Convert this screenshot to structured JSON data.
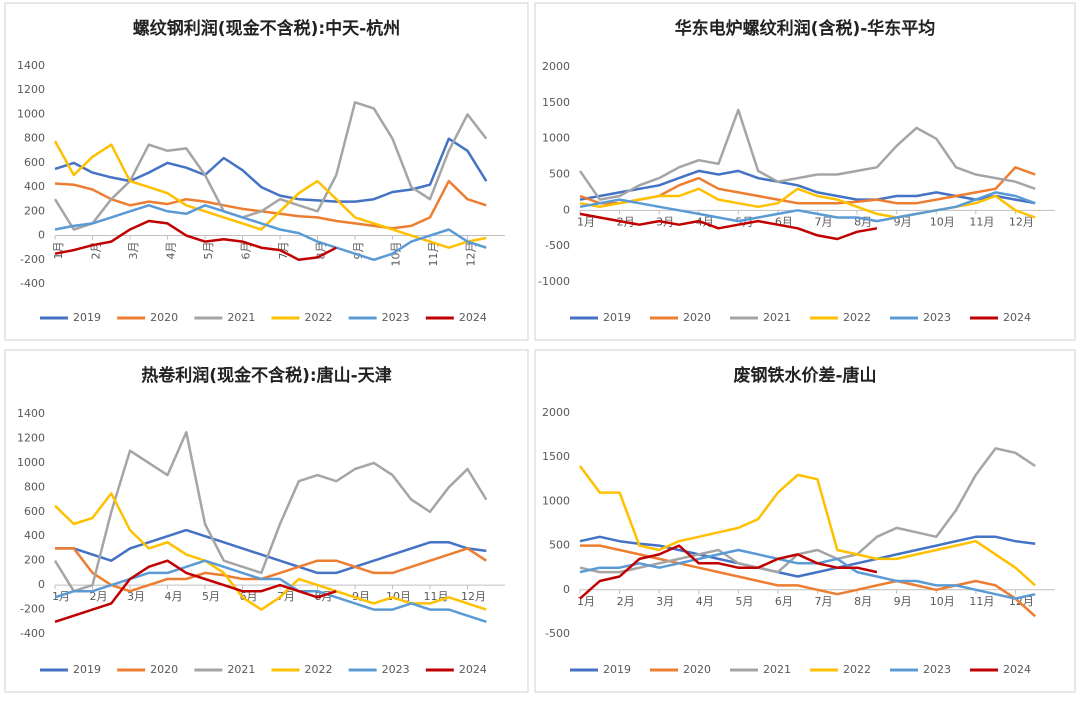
{
  "chart_data": [
    {
      "type": "line",
      "title": "螺纹钢利润(现金不含税):中天-杭州",
      "x": [
        1,
        1.5,
        2,
        2.5,
        3,
        3.5,
        4,
        4.5,
        5,
        5.5,
        6,
        6.5,
        7,
        7.5,
        8,
        8.5,
        9,
        9.5,
        10,
        10.5,
        11,
        11.5,
        12,
        12.5
      ],
      "xlim": [
        1,
        13
      ],
      "xticks": [
        {
          "value": 1,
          "label": "1月"
        },
        {
          "value": 2,
          "label": "2月"
        },
        {
          "value": 3,
          "label": "3月"
        },
        {
          "value": 4,
          "label": "4月"
        },
        {
          "value": 5,
          "label": "5月"
        },
        {
          "value": 6,
          "label": "6月"
        },
        {
          "value": 7,
          "label": "7月"
        },
        {
          "value": 8,
          "label": "8月"
        },
        {
          "value": 9,
          "label": "9月"
        },
        {
          "value": 10,
          "label": "10月"
        },
        {
          "value": 11,
          "label": "11月"
        },
        {
          "value": 12,
          "label": "12月"
        }
      ],
      "ylim": [
        -400,
        1400
      ],
      "yticks": [
        -400,
        -200,
        0,
        200,
        400,
        600,
        800,
        1000,
        1200,
        1400
      ],
      "series": [
        {
          "name": "2019",
          "color": "#4472c4",
          "values": [
            550,
            600,
            520,
            480,
            450,
            520,
            600,
            560,
            500,
            640,
            540,
            400,
            330,
            300,
            290,
            280,
            280,
            300,
            360,
            380,
            420,
            800,
            700,
            450
          ]
        },
        {
          "name": "2020",
          "color": "#ed7d31",
          "values": [
            430,
            420,
            380,
            300,
            250,
            280,
            260,
            300,
            280,
            250,
            220,
            200,
            180,
            160,
            150,
            120,
            100,
            80,
            60,
            80,
            150,
            450,
            300,
            250
          ]
        },
        {
          "name": "2021",
          "color": "#a5a5a5",
          "values": [
            300,
            50,
            100,
            300,
            450,
            750,
            700,
            720,
            500,
            200,
            150,
            200,
            300,
            250,
            200,
            500,
            1100,
            1050,
            800,
            400,
            300,
            700,
            1000,
            800
          ]
        },
        {
          "name": "2022",
          "color": "#ffc000",
          "values": [
            780,
            500,
            650,
            750,
            450,
            400,
            350,
            250,
            200,
            150,
            100,
            50,
            200,
            350,
            450,
            300,
            150,
            100,
            50,
            0,
            -50,
            -100,
            -50,
            -20
          ]
        },
        {
          "name": "2023",
          "color": "#5b9bd5",
          "values": [
            50,
            80,
            100,
            150,
            200,
            250,
            200,
            180,
            250,
            200,
            150,
            100,
            50,
            20,
            -50,
            -100,
            -150,
            -200,
            -150,
            -50,
            0,
            50,
            -50,
            -100
          ]
        },
        {
          "name": "2024",
          "color": "#c00000",
          "values": [
            -150,
            -120,
            -80,
            -50,
            50,
            120,
            100,
            0,
            -50,
            -30,
            -50,
            -100,
            -120,
            -200,
            -180,
            -100,
            null,
            null,
            null,
            null,
            null,
            null,
            null,
            null
          ]
        }
      ]
    },
    {
      "type": "line",
      "title": "华东电炉螺纹利润(含税)-华东平均",
      "x": [
        1,
        1.5,
        2,
        2.5,
        3,
        3.5,
        4,
        4.5,
        5,
        5.5,
        6,
        6.5,
        7,
        7.5,
        8,
        8.5,
        9,
        9.5,
        10,
        10.5,
        11,
        11.5,
        12,
        12.5
      ],
      "xlim": [
        1,
        13
      ],
      "xticks": [
        {
          "value": 1,
          "label": "1月"
        },
        {
          "value": 2,
          "label": "2月"
        },
        {
          "value": 3,
          "label": "3月"
        },
        {
          "value": 4,
          "label": "4月"
        },
        {
          "value": 5,
          "label": "5月"
        },
        {
          "value": 6,
          "label": "6月"
        },
        {
          "value": 7,
          "label": "7月"
        },
        {
          "value": 8,
          "label": "8月"
        },
        {
          "value": 9,
          "label": "9月"
        },
        {
          "value": 10,
          "label": "10月"
        },
        {
          "value": 11,
          "label": "11月"
        },
        {
          "value": 12,
          "label": "12月"
        }
      ],
      "ylim": [
        -1000,
        2000
      ],
      "yticks": [
        -1000,
        -500,
        0,
        500,
        1000,
        1500,
        2000
      ],
      "series": [
        {
          "name": "2019",
          "color": "#4472c4",
          "values": [
            150,
            200,
            250,
            300,
            350,
            450,
            550,
            500,
            550,
            450,
            400,
            350,
            250,
            200,
            150,
            150,
            200,
            200,
            250,
            200,
            150,
            200,
            150,
            100
          ]
        },
        {
          "name": "2020",
          "color": "#ed7d31",
          "values": [
            200,
            100,
            100,
            150,
            200,
            350,
            450,
            300,
            250,
            200,
            150,
            100,
            100,
            100,
            120,
            150,
            100,
            100,
            150,
            200,
            250,
            300,
            600,
            500
          ]
        },
        {
          "name": "2021",
          "color": "#a5a5a5",
          "values": [
            550,
            150,
            200,
            350,
            450,
            600,
            700,
            650,
            1400,
            550,
            400,
            450,
            500,
            500,
            550,
            600,
            900,
            1150,
            1000,
            600,
            500,
            450,
            400,
            300
          ]
        },
        {
          "name": "2022",
          "color": "#ffc000",
          "values": [
            100,
            50,
            100,
            150,
            200,
            200,
            300,
            150,
            100,
            50,
            100,
            300,
            200,
            150,
            50,
            -50,
            -100,
            -50,
            0,
            50,
            100,
            200,
            0,
            -100
          ]
        },
        {
          "name": "2023",
          "color": "#5b9bd5",
          "values": [
            50,
            100,
            150,
            100,
            50,
            0,
            -50,
            -100,
            -150,
            -100,
            -50,
            0,
            -50,
            -100,
            -100,
            -150,
            -100,
            -50,
            0,
            50,
            150,
            250,
            200,
            100
          ]
        },
        {
          "name": "2024",
          "color": "#c00000",
          "values": [
            -50,
            -100,
            -150,
            -200,
            -150,
            -200,
            -150,
            -250,
            -200,
            -150,
            -200,
            -250,
            -350,
            -400,
            -300,
            -250,
            null,
            null,
            null,
            null,
            null,
            null,
            null,
            null
          ]
        }
      ]
    },
    {
      "type": "line",
      "title": "热卷利润(现金不含税):唐山-天津",
      "x": [
        1,
        1.5,
        2,
        2.5,
        3,
        3.5,
        4,
        4.5,
        5,
        5.5,
        6,
        6.5,
        7,
        7.5,
        8,
        8.5,
        9,
        9.5,
        10,
        10.5,
        11,
        11.5,
        12,
        12.5
      ],
      "xlim": [
        1,
        13
      ],
      "xticks": [
        {
          "value": 1,
          "label": "1月"
        },
        {
          "value": 2,
          "label": "2月"
        },
        {
          "value": 3,
          "label": "3月"
        },
        {
          "value": 4,
          "label": "4月"
        },
        {
          "value": 5,
          "label": "5月"
        },
        {
          "value": 6,
          "label": "6月"
        },
        {
          "value": 7,
          "label": "7月"
        },
        {
          "value": 8,
          "label": "8月"
        },
        {
          "value": 9,
          "label": "9月"
        },
        {
          "value": 10,
          "label": "10月"
        },
        {
          "value": 11,
          "label": "11月"
        },
        {
          "value": 12,
          "label": "12月"
        }
      ],
      "ylim": [
        -400,
        1400
      ],
      "yticks": [
        -400,
        -200,
        0,
        200,
        400,
        600,
        800,
        1000,
        1200,
        1400
      ],
      "series": [
        {
          "name": "2019",
          "color": "#4472c4",
          "values": [
            300,
            300,
            250,
            200,
            300,
            350,
            400,
            450,
            400,
            350,
            300,
            250,
            200,
            150,
            100,
            100,
            150,
            200,
            250,
            300,
            350,
            350,
            300,
            280
          ]
        },
        {
          "name": "2020",
          "color": "#ed7d31",
          "values": [
            300,
            300,
            100,
            0,
            -50,
            0,
            50,
            50,
            100,
            80,
            50,
            50,
            100,
            150,
            200,
            200,
            150,
            100,
            100,
            150,
            200,
            250,
            300,
            200
          ]
        },
        {
          "name": "2021",
          "color": "#a5a5a5",
          "values": [
            200,
            -50,
            0,
            600,
            1100,
            1000,
            900,
            1250,
            500,
            200,
            150,
            100,
            500,
            850,
            900,
            850,
            950,
            1000,
            900,
            700,
            600,
            800,
            950,
            700
          ]
        },
        {
          "name": "2022",
          "color": "#ffc000",
          "values": [
            650,
            500,
            550,
            750,
            450,
            300,
            350,
            250,
            200,
            100,
            -100,
            -200,
            -100,
            50,
            0,
            -50,
            -100,
            -150,
            -100,
            -150,
            -150,
            -100,
            -150,
            -200
          ]
        },
        {
          "name": "2023",
          "color": "#5b9bd5",
          "values": [
            -100,
            -50,
            -50,
            0,
            50,
            100,
            100,
            150,
            200,
            150,
            100,
            50,
            50,
            -50,
            -50,
            -100,
            -150,
            -200,
            -200,
            -150,
            -200,
            -200,
            -250,
            -300
          ]
        },
        {
          "name": "2024",
          "color": "#c00000",
          "values": [
            -300,
            -250,
            -200,
            -150,
            50,
            150,
            200,
            100,
            50,
            0,
            -50,
            -50,
            0,
            -50,
            -100,
            -50,
            null,
            null,
            null,
            null,
            null,
            null,
            null,
            null
          ]
        }
      ]
    },
    {
      "type": "line",
      "title": "废钢铁水价差-唐山",
      "x": [
        1,
        1.5,
        2,
        2.5,
        3,
        3.5,
        4,
        4.5,
        5,
        5.5,
        6,
        6.5,
        7,
        7.5,
        8,
        8.5,
        9,
        9.5,
        10,
        10.5,
        11,
        11.5,
        12,
        12.5
      ],
      "xlim": [
        1,
        13
      ],
      "xticks": [
        {
          "value": 1,
          "label": "1月"
        },
        {
          "value": 2,
          "label": "2月"
        },
        {
          "value": 3,
          "label": "3月"
        },
        {
          "value": 4,
          "label": "4月"
        },
        {
          "value": 5,
          "label": "5月"
        },
        {
          "value": 6,
          "label": "6月"
        },
        {
          "value": 7,
          "label": "7月"
        },
        {
          "value": 8,
          "label": "8月"
        },
        {
          "value": 9,
          "label": "9月"
        },
        {
          "value": 10,
          "label": "10月"
        },
        {
          "value": 11,
          "label": "11月"
        },
        {
          "value": 12,
          "label": "12月"
        }
      ],
      "ylim": [
        -500,
        2000
      ],
      "yticks": [
        -500,
        0,
        500,
        1000,
        1500,
        2000
      ],
      "series": [
        {
          "name": "2019",
          "color": "#4472c4",
          "values": [
            550,
            600,
            550,
            520,
            500,
            450,
            400,
            350,
            300,
            250,
            200,
            150,
            200,
            250,
            300,
            350,
            400,
            450,
            500,
            550,
            600,
            600,
            550,
            520
          ]
        },
        {
          "name": "2020",
          "color": "#ed7d31",
          "values": [
            500,
            500,
            450,
            400,
            350,
            300,
            250,
            200,
            150,
            100,
            50,
            50,
            0,
            -50,
            0,
            50,
            100,
            50,
            0,
            50,
            100,
            50,
            -100,
            -300
          ]
        },
        {
          "name": "2021",
          "color": "#a5a5a5",
          "values": [
            250,
            200,
            200,
            250,
            300,
            350,
            400,
            450,
            300,
            250,
            200,
            400,
            450,
            350,
            400,
            600,
            700,
            650,
            600,
            900,
            1300,
            1600,
            1550,
            1400
          ]
        },
        {
          "name": "2022",
          "color": "#ffc000",
          "values": [
            1400,
            1100,
            1100,
            500,
            450,
            550,
            600,
            650,
            700,
            800,
            1100,
            1300,
            1250,
            450,
            400,
            350,
            350,
            400,
            450,
            500,
            550,
            400,
            250,
            50
          ]
        },
        {
          "name": "2023",
          "color": "#5b9bd5",
          "values": [
            200,
            250,
            250,
            300,
            250,
            300,
            350,
            400,
            450,
            400,
            350,
            300,
            300,
            350,
            200,
            150,
            100,
            100,
            50,
            50,
            0,
            -50,
            -100,
            -50
          ]
        },
        {
          "name": "2024",
          "color": "#c00000",
          "values": [
            -100,
            100,
            150,
            350,
            400,
            500,
            300,
            300,
            250,
            250,
            350,
            400,
            300,
            250,
            250,
            200,
            null,
            null,
            null,
            null,
            null,
            null,
            null,
            null
          ]
        }
      ]
    }
  ]
}
